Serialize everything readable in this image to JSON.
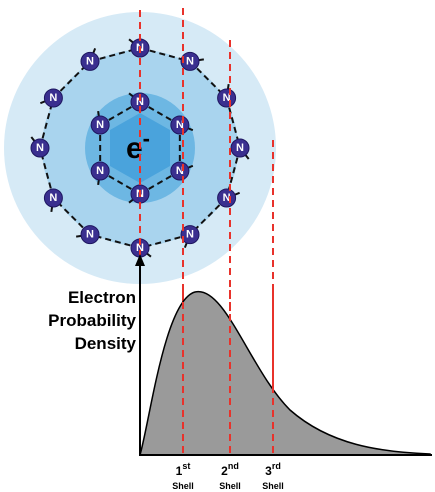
{
  "molecule": {
    "atom_label": "N",
    "electron": {
      "symbol": "e",
      "charge": "-"
    }
  },
  "plot": {
    "y_axis_label": [
      "Electron",
      "Probability",
      "Density"
    ],
    "shells": [
      {
        "ordinal": "1",
        "suffix": "st",
        "label": "Shell"
      },
      {
        "ordinal": "2",
        "suffix": "nd",
        "label": "Shell"
      },
      {
        "ordinal": "3",
        "suffix": "rd",
        "label": "Shell"
      }
    ]
  }
}
